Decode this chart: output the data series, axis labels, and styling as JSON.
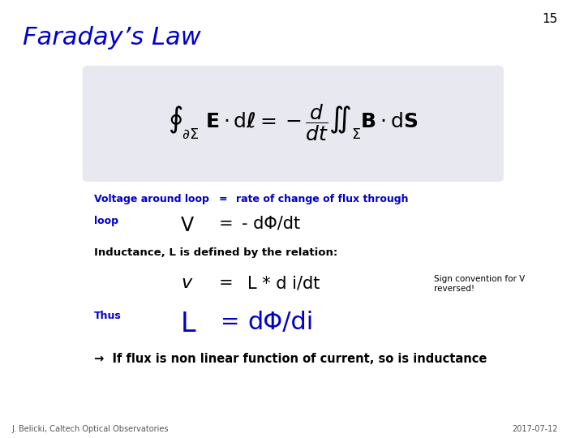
{
  "title": "Faraday’s Law",
  "slide_number": "15",
  "title_color": "#0000CC",
  "background_color": "#FFFFFF",
  "formula_box_color": "#E8E8F0",
  "line1_blue": "Voltage around loop",
  "line1_eq": "=",
  "line1_rest": "rate of change of flux through",
  "line2_blue": "loop",
  "line2_V": "V",
  "line2_eq": "=",
  "line2_rest": "- dΦ/dt",
  "line3": "Inductance, L is defined by the relation:",
  "line4_v": "v",
  "line4_eq": "=",
  "line4_rest": "L * d i/dt",
  "line4_note": "Sign convention for V\nreversed!",
  "line5_thus": "Thus",
  "line5_L": "L",
  "line5_eq": "=",
  "line5_rest": "dΦ/di",
  "line6": "→  If flux is non linear function of current, so is inductance",
  "footer_left": "J. Belicki, Caltech Optical Observatories",
  "footer_right": "2017-07-12",
  "blue_color": "#0000CC",
  "black_color": "#000000",
  "gray_color": "#555555"
}
